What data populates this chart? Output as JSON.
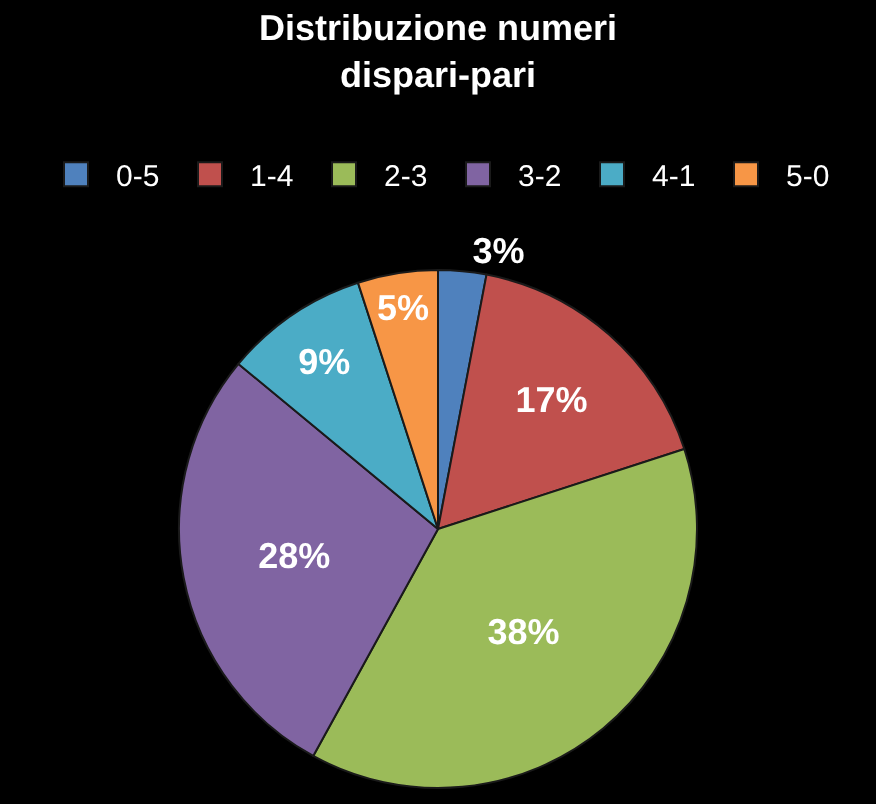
{
  "chart_data": {
    "type": "pie",
    "title": "Distribuzione numeri\ndispari-pari",
    "categories": [
      "0-5",
      "1-4",
      "2-3",
      "3-2",
      "4-1",
      "5-0"
    ],
    "values": [
      3,
      17,
      38,
      28,
      9,
      5
    ],
    "value_labels": [
      "3%",
      "17%",
      "38%",
      "28%",
      "9%",
      "5%"
    ],
    "colors": [
      "#4f81bd",
      "#c0504d",
      "#9bbb59",
      "#8064a2",
      "#4bacc6",
      "#f79646"
    ],
    "legend": "top"
  }
}
